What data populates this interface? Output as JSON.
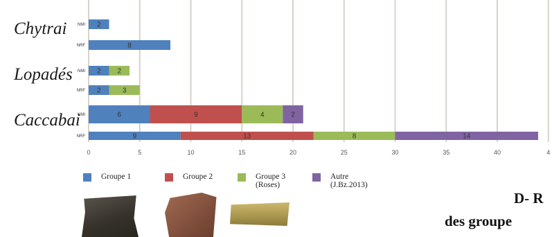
{
  "chart_data": {
    "type": "bar",
    "orientation": "horizontal",
    "stacked": true,
    "groups": [
      {
        "label": "Chytrai",
        "rows": [
          {
            "label": "NMI",
            "values": [
              2,
              0,
              0,
              0
            ]
          },
          {
            "label": "NRF",
            "values": [
              8,
              0,
              0,
              0
            ]
          }
        ]
      },
      {
        "label": "Lopadés",
        "rows": [
          {
            "label": "NMI",
            "values": [
              2,
              0,
              2,
              0
            ]
          },
          {
            "label": "NRF",
            "values": [
              2,
              0,
              3,
              0
            ]
          }
        ]
      },
      {
        "label": "Caccabai",
        "rows": [
          {
            "label": "NMI",
            "values": [
              6,
              9,
              4,
              2
            ]
          },
          {
            "label": "NRF",
            "values": [
              9,
              13,
              8,
              14
            ]
          }
        ]
      }
    ],
    "series": [
      {
        "name": "Groupe 1",
        "color": "#4f81bd"
      },
      {
        "name": "Groupe 2",
        "color": "#c0504d"
      },
      {
        "name": "Groupe 3",
        "name_note": "(Roses)",
        "color": "#9bbb59"
      },
      {
        "name": "Autre",
        "name_note": "(J.Bz.2013)",
        "color": "#8064a2"
      }
    ],
    "xticks": [
      "0",
      "5",
      "10",
      "15",
      "20",
      "25",
      "30",
      "35",
      "40",
      "4"
    ],
    "xlim": [
      0,
      45
    ],
    "grid": true,
    "legend_position": "bottom"
  },
  "title_lines": [
    "D- R",
    "des groupe"
  ],
  "photos": [
    {
      "name": "sherd-dark-photo",
      "color": "#3f3b35"
    },
    {
      "name": "sherd-red-photo",
      "color": "#8a5a45"
    },
    {
      "name": "sherd-yellow-photo",
      "color": "#b2a05a"
    }
  ]
}
